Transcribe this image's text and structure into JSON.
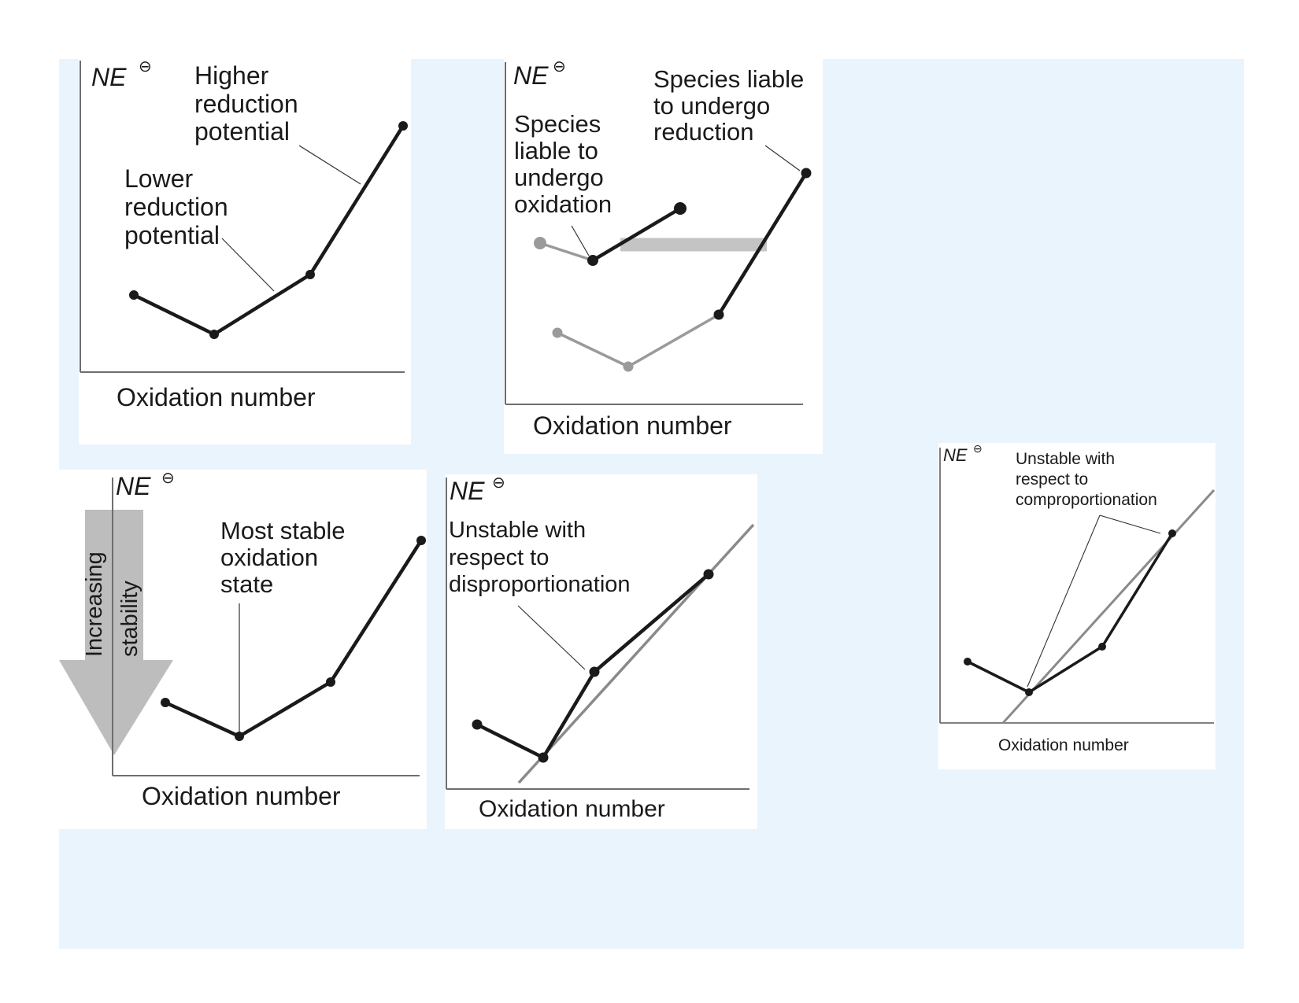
{
  "axis_symbol": "NE",
  "axis_superscript": "⊖",
  "xlabel": "Oxidation number",
  "colors": {
    "background": "#eaf4fd",
    "panel": "#ffffff",
    "black": "#1a1a1a",
    "grey": "#9a9a9a",
    "arrow": "#bdbdbd"
  },
  "panels": {
    "reduction": {
      "annotation_high": [
        "Higher",
        "reduction",
        "potential"
      ],
      "annotation_low": [
        "Lower",
        "reduction",
        "potential"
      ]
    },
    "species": {
      "annotation_oxidation": [
        "Species",
        "liable to",
        "undergo",
        "oxidation"
      ],
      "annotation_reduction": [
        "Species liable",
        "to undergo",
        "reduction"
      ]
    },
    "stability": {
      "arrow_label": [
        "Increasing",
        "stability"
      ],
      "annotation": [
        "Most stable",
        "oxidation",
        "state"
      ]
    },
    "disproportionation": {
      "annotation": [
        "Unstable with",
        "respect to",
        "disproportionation"
      ]
    },
    "comproportionation": {
      "annotation": [
        "Unstable with",
        "respect to",
        "comproportionation"
      ]
    }
  }
}
